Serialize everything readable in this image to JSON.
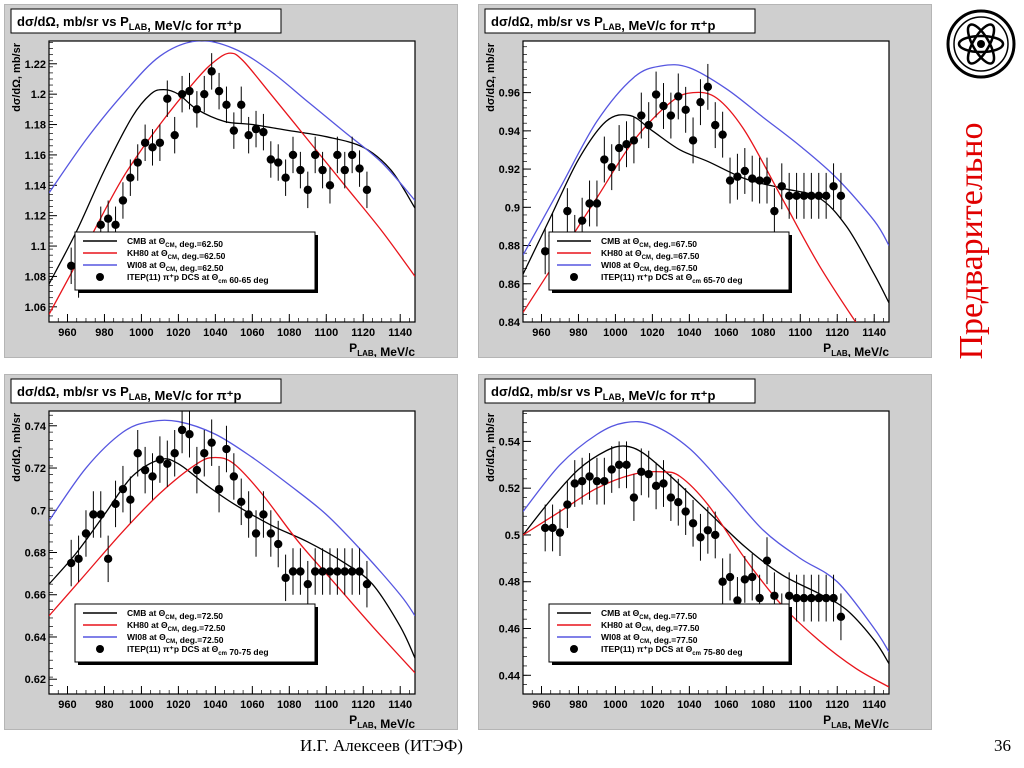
{
  "slide": {
    "side_label": "Предварительно",
    "author": "И.Г. Алексеев (ИТЭФ)",
    "page_number": "36"
  },
  "colors": {
    "cmb": "#000000",
    "kh80": "#e8141b",
    "wi08": "#5656e0",
    "data": "#000000"
  },
  "chart_data": [
    {
      "type": "line",
      "title": "dσ/dΩ, mb/sr vs P_LAB, MeV/c for π⁺p",
      "xlabel": "P_LAB, MeV/c",
      "ylabel": "dσ/dΩ, mb/sr",
      "xlim": [
        950,
        1148
      ],
      "ylim": [
        1.05,
        1.235
      ],
      "xticks": [
        960,
        980,
        1000,
        1020,
        1040,
        1060,
        1080,
        1100,
        1120,
        1140
      ],
      "yticks": [
        1.06,
        1.08,
        1.1,
        1.12,
        1.14,
        1.16,
        1.18,
        1.2,
        1.22
      ],
      "ytick_labels": [
        "1.06",
        "1.08",
        "1.1",
        "1.12",
        "1.14",
        "1.16",
        "1.18",
        "1.2",
        "1.22"
      ],
      "legend": [
        "CMB  at Θ_CM, deg.=62.50",
        "KH80  at Θ_CM, deg.=62.50",
        "WI08  at Θ_CM, deg.=62.50",
        "ITEP(11) π⁺p DCS at Θ_cm 60-65 deg"
      ],
      "series": [
        {
          "name": "CMB",
          "x": [
            950,
            965,
            980,
            995,
            1005,
            1012,
            1020,
            1030,
            1045,
            1060,
            1080,
            1100,
            1120,
            1135,
            1148
          ],
          "y": [
            1.075,
            1.11,
            1.15,
            1.185,
            1.2,
            1.203,
            1.2,
            1.19,
            1.182,
            1.18,
            1.176,
            1.172,
            1.165,
            1.15,
            1.125
          ]
        },
        {
          "name": "KH80",
          "x": [
            950,
            970,
            990,
            1010,
            1030,
            1040,
            1048,
            1055,
            1070,
            1090,
            1110,
            1130,
            1148
          ],
          "y": [
            1.055,
            1.1,
            1.145,
            1.18,
            1.21,
            1.222,
            1.227,
            1.222,
            1.2,
            1.17,
            1.14,
            1.11,
            1.08
          ]
        },
        {
          "name": "WI08",
          "x": [
            950,
            970,
            990,
            1010,
            1030,
            1050,
            1070,
            1090,
            1110,
            1130,
            1148
          ],
          "y": [
            1.135,
            1.17,
            1.2,
            1.225,
            1.235,
            1.23,
            1.215,
            1.195,
            1.175,
            1.155,
            1.13
          ]
        }
      ],
      "points": {
        "x": [
          962,
          966,
          970,
          974,
          978,
          982,
          986,
          990,
          994,
          998,
          1002,
          1006,
          1010,
          1014,
          1018,
          1022,
          1026,
          1030,
          1034,
          1038,
          1042,
          1046,
          1050,
          1054,
          1058,
          1062,
          1066,
          1070,
          1074,
          1078,
          1082,
          1086,
          1090,
          1094,
          1098,
          1102,
          1106,
          1110,
          1114,
          1118,
          1122
        ],
        "y": [
          1.087,
          1.078,
          1.095,
          1.086,
          1.114,
          1.118,
          1.114,
          1.13,
          1.145,
          1.155,
          1.168,
          1.165,
          1.168,
          1.197,
          1.173,
          1.2,
          1.202,
          1.19,
          1.2,
          1.215,
          1.202,
          1.193,
          1.176,
          1.193,
          1.173,
          1.177,
          1.175,
          1.157,
          1.155,
          1.145,
          1.16,
          1.15,
          1.137,
          1.16,
          1.15,
          1.14,
          1.16,
          1.15,
          1.16,
          1.151,
          1.137
        ],
        "err": [
          0.012,
          0.012,
          0.012,
          0.012,
          0.012,
          0.012,
          0.012,
          0.012,
          0.012,
          0.012,
          0.012,
          0.012,
          0.012,
          0.012,
          0.012,
          0.012,
          0.012,
          0.012,
          0.012,
          0.012,
          0.012,
          0.012,
          0.012,
          0.012,
          0.012,
          0.012,
          0.012,
          0.012,
          0.012,
          0.012,
          0.012,
          0.012,
          0.012,
          0.012,
          0.012,
          0.012,
          0.012,
          0.012,
          0.012,
          0.012,
          0.012
        ]
      }
    },
    {
      "type": "line",
      "title": "dσ/dΩ, mb/sr vs P_LAB, MeV/c for π⁺p",
      "xlabel": "P_LAB, MeV/c",
      "ylabel": "dσ/dΩ, mb/sr",
      "xlim": [
        950,
        1148
      ],
      "ylim": [
        0.84,
        0.987
      ],
      "xticks": [
        960,
        980,
        1000,
        1020,
        1040,
        1060,
        1080,
        1100,
        1120,
        1140
      ],
      "yticks": [
        0.84,
        0.86,
        0.88,
        0.9,
        0.92,
        0.94,
        0.96
      ],
      "ytick_labels": [
        "0.84",
        "0.86",
        "0.88",
        "0.9",
        "0.92",
        "0.94",
        "0.96"
      ],
      "legend": [
        "CMB  at Θ_CM, deg.=67.50",
        "KH80  at Θ_CM, deg.=67.50",
        "WI08  at Θ_CM, deg.=67.50",
        "ITEP(11) π⁺p DCS at Θ_cm 65-70 deg"
      ],
      "series": [
        {
          "name": "CMB",
          "x": [
            950,
            965,
            980,
            995,
            1008,
            1020,
            1035,
            1050,
            1070,
            1090,
            1110,
            1125,
            1140,
            1148
          ],
          "y": [
            0.865,
            0.895,
            0.925,
            0.945,
            0.948,
            0.94,
            0.93,
            0.924,
            0.915,
            0.91,
            0.905,
            0.89,
            0.865,
            0.85
          ]
        },
        {
          "name": "KH80",
          "x": [
            950,
            970,
            990,
            1010,
            1030,
            1042,
            1055,
            1070,
            1090,
            1110,
            1130,
            1148
          ],
          "y": [
            0.845,
            0.875,
            0.905,
            0.935,
            0.955,
            0.96,
            0.957,
            0.94,
            0.905,
            0.87,
            0.84,
            0.815
          ]
        },
        {
          "name": "WI08",
          "x": [
            950,
            970,
            990,
            1010,
            1025,
            1040,
            1060,
            1080,
            1100,
            1120,
            1140,
            1148
          ],
          "y": [
            0.875,
            0.91,
            0.945,
            0.968,
            0.974,
            0.973,
            0.962,
            0.947,
            0.932,
            0.915,
            0.893,
            0.88
          ]
        }
      ],
      "points": {
        "x": [
          962,
          966,
          970,
          974,
          978,
          982,
          986,
          990,
          994,
          998,
          1002,
          1006,
          1010,
          1014,
          1018,
          1022,
          1026,
          1030,
          1034,
          1038,
          1042,
          1046,
          1050,
          1054,
          1058,
          1062,
          1066,
          1070,
          1074,
          1078,
          1082,
          1086,
          1090,
          1094,
          1098,
          1102,
          1106,
          1110,
          1114,
          1118,
          1122
        ],
        "y": [
          0.877,
          0.885,
          0.875,
          0.898,
          0.884,
          0.893,
          0.902,
          0.902,
          0.925,
          0.921,
          0.931,
          0.933,
          0.935,
          0.948,
          0.943,
          0.959,
          0.953,
          0.948,
          0.958,
          0.951,
          0.935,
          0.955,
          0.963,
          0.943,
          0.938,
          0.914,
          0.916,
          0.919,
          0.915,
          0.914,
          0.914,
          0.898,
          0.911,
          0.906,
          0.906,
          0.906,
          0.906,
          0.906,
          0.906,
          0.911,
          0.906
        ],
        "err": [
          0.012,
          0.012,
          0.012,
          0.012,
          0.012,
          0.012,
          0.012,
          0.012,
          0.012,
          0.012,
          0.012,
          0.012,
          0.012,
          0.012,
          0.012,
          0.012,
          0.012,
          0.012,
          0.012,
          0.012,
          0.012,
          0.012,
          0.012,
          0.012,
          0.012,
          0.012,
          0.012,
          0.012,
          0.012,
          0.012,
          0.012,
          0.012,
          0.012,
          0.012,
          0.012,
          0.012,
          0.012,
          0.012,
          0.012,
          0.012,
          0.012
        ]
      }
    },
    {
      "type": "line",
      "title": "dσ/dΩ, mb/sr vs P_LAB, MeV/c for π⁺p",
      "xlabel": "P_LAB, MeV/c",
      "ylabel": "dσ/dΩ, mb/sr",
      "xlim": [
        950,
        1148
      ],
      "ylim": [
        0.613,
        0.747
      ],
      "xticks": [
        960,
        980,
        1000,
        1020,
        1040,
        1060,
        1080,
        1100,
        1120,
        1140
      ],
      "yticks": [
        0.62,
        0.64,
        0.66,
        0.68,
        0.7,
        0.72,
        0.74
      ],
      "ytick_labels": [
        "0.62",
        "0.64",
        "0.66",
        "0.68",
        "0.7",
        "0.72",
        "0.74"
      ],
      "legend": [
        "CMB  at Θ_CM, deg.=72.50",
        "KH80  at Θ_CM, deg.=72.50",
        "WI08  at Θ_CM, deg.=72.50",
        "ITEP(11) π⁺p DCS at Θ_cm 70-75 deg"
      ],
      "series": [
        {
          "name": "CMB",
          "x": [
            950,
            965,
            980,
            995,
            1010,
            1020,
            1035,
            1050,
            1070,
            1090,
            1110,
            1125,
            1140,
            1148
          ],
          "y": [
            0.665,
            0.68,
            0.698,
            0.716,
            0.724,
            0.722,
            0.712,
            0.703,
            0.693,
            0.685,
            0.675,
            0.665,
            0.645,
            0.63
          ]
        },
        {
          "name": "KH80",
          "x": [
            950,
            970,
            990,
            1010,
            1030,
            1040,
            1050,
            1065,
            1085,
            1105,
            1125,
            1148
          ],
          "y": [
            0.65,
            0.67,
            0.69,
            0.708,
            0.722,
            0.725,
            0.722,
            0.708,
            0.685,
            0.665,
            0.645,
            0.623
          ]
        },
        {
          "name": "WI08",
          "x": [
            950,
            970,
            990,
            1005,
            1020,
            1040,
            1060,
            1080,
            1100,
            1120,
            1140,
            1148
          ],
          "y": [
            0.695,
            0.72,
            0.737,
            0.742,
            0.742,
            0.736,
            0.725,
            0.712,
            0.698,
            0.68,
            0.66,
            0.65
          ]
        }
      ],
      "points": {
        "x": [
          962,
          966,
          970,
          974,
          978,
          982,
          986,
          990,
          994,
          998,
          1002,
          1006,
          1010,
          1014,
          1018,
          1022,
          1026,
          1030,
          1034,
          1038,
          1042,
          1046,
          1050,
          1054,
          1058,
          1062,
          1066,
          1070,
          1074,
          1078,
          1082,
          1086,
          1090,
          1094,
          1098,
          1102,
          1106,
          1110,
          1114,
          1118,
          1122
        ],
        "y": [
          0.675,
          0.677,
          0.689,
          0.698,
          0.698,
          0.677,
          0.703,
          0.71,
          0.705,
          0.727,
          0.719,
          0.716,
          0.724,
          0.722,
          0.727,
          0.738,
          0.736,
          0.719,
          0.727,
          0.732,
          0.71,
          0.729,
          0.716,
          0.704,
          0.698,
          0.689,
          0.698,
          0.689,
          0.684,
          0.668,
          0.671,
          0.671,
          0.665,
          0.671,
          0.671,
          0.671,
          0.671,
          0.671,
          0.671,
          0.671,
          0.665
        ],
        "err": [
          0.011,
          0.011,
          0.011,
          0.011,
          0.011,
          0.011,
          0.011,
          0.011,
          0.011,
          0.011,
          0.011,
          0.011,
          0.011,
          0.011,
          0.011,
          0.011,
          0.011,
          0.011,
          0.011,
          0.011,
          0.011,
          0.011,
          0.011,
          0.011,
          0.011,
          0.011,
          0.011,
          0.011,
          0.011,
          0.011,
          0.011,
          0.011,
          0.011,
          0.011,
          0.011,
          0.011,
          0.011,
          0.011,
          0.011,
          0.011,
          0.011
        ]
      }
    },
    {
      "type": "line",
      "title": "dσ/dΩ, mb/sr vs P_LAB, MeV/c for π⁺p",
      "xlabel": "P_LAB, MeV/c",
      "ylabel": "dσ/dΩ, mb/sr",
      "xlim": [
        950,
        1148
      ],
      "ylim": [
        0.432,
        0.553
      ],
      "xticks": [
        960,
        980,
        1000,
        1020,
        1040,
        1060,
        1080,
        1100,
        1120,
        1140
      ],
      "yticks": [
        0.44,
        0.46,
        0.48,
        0.5,
        0.52,
        0.54
      ],
      "ytick_labels": [
        "0.44",
        "0.46",
        "0.48",
        "0.5",
        "0.52",
        "0.54"
      ],
      "legend": [
        "CMB  at Θ_CM, deg.=77.50",
        "KH80  at Θ_CM, deg.=77.50",
        "WI08  at Θ_CM, deg.=77.50",
        "ITEP(11) π⁺p DCS at Θ_cm 75-80 deg"
      ],
      "series": [
        {
          "name": "CMB",
          "x": [
            950,
            965,
            980,
            995,
            1005,
            1015,
            1030,
            1050,
            1070,
            1090,
            1110,
            1125,
            1140,
            1148
          ],
          "y": [
            0.5,
            0.515,
            0.528,
            0.536,
            0.538,
            0.535,
            0.525,
            0.51,
            0.495,
            0.483,
            0.475,
            0.468,
            0.455,
            0.445
          ]
        },
        {
          "name": "KH80",
          "x": [
            950,
            970,
            990,
            1010,
            1025,
            1035,
            1050,
            1070,
            1090,
            1110,
            1130,
            1148
          ],
          "y": [
            0.5,
            0.51,
            0.52,
            0.526,
            0.527,
            0.525,
            0.513,
            0.49,
            0.47,
            0.455,
            0.443,
            0.435
          ]
        },
        {
          "name": "WI08",
          "x": [
            950,
            970,
            990,
            1005,
            1020,
            1040,
            1060,
            1080,
            1100,
            1120,
            1140,
            1148
          ],
          "y": [
            0.51,
            0.53,
            0.543,
            0.548,
            0.547,
            0.537,
            0.52,
            0.502,
            0.49,
            0.48,
            0.46,
            0.45
          ]
        }
      ],
      "points": {
        "x": [
          962,
          966,
          970,
          974,
          978,
          982,
          986,
          990,
          994,
          998,
          1002,
          1006,
          1010,
          1014,
          1018,
          1022,
          1026,
          1030,
          1034,
          1038,
          1042,
          1046,
          1050,
          1054,
          1058,
          1062,
          1066,
          1070,
          1074,
          1078,
          1082,
          1086,
          1090,
          1094,
          1098,
          1102,
          1106,
          1110,
          1114,
          1118,
          1122
        ],
        "y": [
          0.503,
          0.503,
          0.501,
          0.513,
          0.522,
          0.523,
          0.525,
          0.523,
          0.523,
          0.528,
          0.53,
          0.53,
          0.516,
          0.527,
          0.526,
          0.521,
          0.522,
          0.516,
          0.514,
          0.51,
          0.505,
          0.499,
          0.502,
          0.5,
          0.48,
          0.482,
          0.472,
          0.481,
          0.482,
          0.473,
          0.489,
          0.474,
          0.465,
          0.474,
          0.473,
          0.473,
          0.473,
          0.473,
          0.473,
          0.473,
          0.465
        ],
        "err": [
          0.01,
          0.01,
          0.01,
          0.01,
          0.01,
          0.01,
          0.01,
          0.01,
          0.01,
          0.01,
          0.01,
          0.01,
          0.01,
          0.01,
          0.01,
          0.01,
          0.01,
          0.01,
          0.01,
          0.01,
          0.01,
          0.01,
          0.01,
          0.01,
          0.01,
          0.01,
          0.01,
          0.01,
          0.01,
          0.01,
          0.01,
          0.01,
          0.01,
          0.01,
          0.01,
          0.01,
          0.01,
          0.01,
          0.01,
          0.01,
          0.01
        ]
      }
    }
  ]
}
